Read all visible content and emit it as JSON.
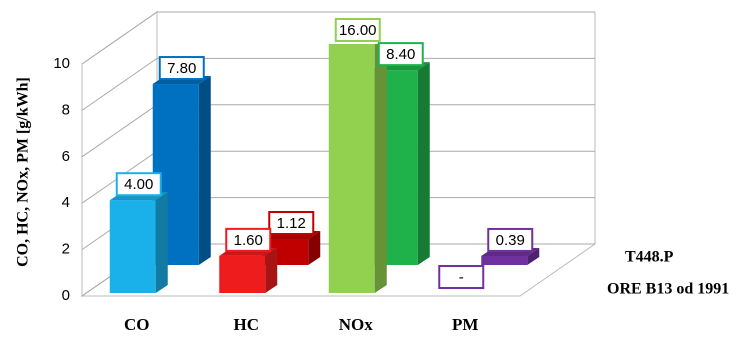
{
  "chart_data": {
    "type": "bar3d",
    "y_label": "CO, HC, NOx, PM [g/kWh]",
    "categories": [
      "CO",
      "HC",
      "NOx",
      "PM"
    ],
    "series": [
      {
        "name": "T448.P",
        "colors": [
          "#1ab0ea",
          "#ee1c1c",
          "#92d050",
          "#7030a0"
        ],
        "values": [
          4.0,
          1.6,
          16.0,
          null
        ],
        "value_labels": [
          "4.00",
          "1.60",
          "16.00",
          "-"
        ]
      },
      {
        "name": "ORE B13 od 1991",
        "colors": [
          "#0070c0",
          "#c00000",
          "#1fb14a",
          "#7030a0"
        ],
        "values": [
          7.8,
          1.12,
          8.4,
          0.39
        ],
        "value_labels": [
          "7.80",
          "1.12",
          "8.40",
          "0.39"
        ]
      }
    ],
    "ylim": [
      0,
      10
    ],
    "yticks": [
      0,
      2,
      4,
      6,
      8,
      10
    ],
    "grid": true
  }
}
